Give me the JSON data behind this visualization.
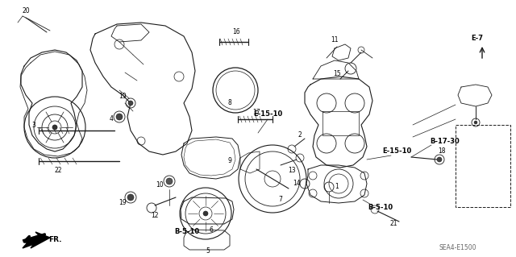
{
  "bg_color": "#ffffff",
  "lc": "#1a1a1a",
  "fig_width": 6.4,
  "fig_height": 3.19,
  "dpi": 100,
  "watermark": "SEA4-E1500",
  "num_labels": [
    [
      "20",
      38,
      18,
      5.5
    ],
    [
      "19",
      148,
      148,
      5.5
    ],
    [
      "19",
      162,
      248,
      5.5
    ],
    [
      "4",
      148,
      235,
      5.5
    ],
    [
      "3",
      48,
      170,
      5.5
    ],
    [
      "22",
      82,
      208,
      5.5
    ],
    [
      "16",
      292,
      55,
      5.5
    ],
    [
      "8",
      284,
      118,
      5.5
    ],
    [
      "17",
      308,
      148,
      5.5
    ],
    [
      "10",
      208,
      218,
      5.5
    ],
    [
      "9",
      292,
      195,
      5.5
    ],
    [
      "12",
      195,
      255,
      5.5
    ],
    [
      "6",
      248,
      280,
      5.5
    ],
    [
      "5",
      248,
      308,
      5.5
    ],
    [
      "7",
      335,
      245,
      5.5
    ],
    [
      "13",
      355,
      208,
      5.5
    ],
    [
      "11",
      408,
      58,
      5.5
    ],
    [
      "15",
      418,
      98,
      5.5
    ],
    [
      "2",
      388,
      175,
      5.5
    ],
    [
      "14",
      378,
      230,
      5.5
    ],
    [
      "1",
      408,
      235,
      5.5
    ],
    [
      "18",
      548,
      198,
      5.5
    ],
    [
      "21",
      485,
      272,
      5.5
    ],
    [
      "19",
      148,
      148,
      5.5
    ]
  ],
  "bold_labels": [
    [
      "E-15-10",
      330,
      148,
      6.0
    ],
    [
      "E-15-10",
      490,
      195,
      6.0
    ],
    [
      "E-7",
      582,
      62,
      6.0
    ],
    [
      "B-5-10",
      218,
      285,
      6.0
    ],
    [
      "B-5-10",
      472,
      258,
      6.0
    ],
    [
      "B-17-30",
      552,
      178,
      6.0
    ]
  ]
}
